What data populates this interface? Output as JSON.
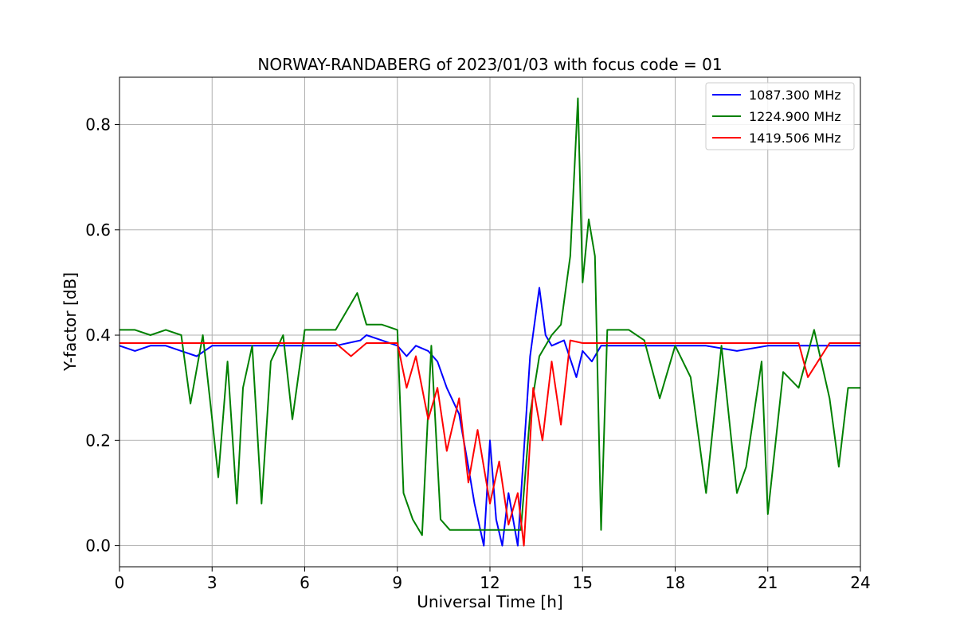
{
  "chart_data": {
    "type": "line",
    "title": "NORWAY-RANDABERG of 2023/01/03 with focus code = 01",
    "xlabel": "Universal Time [h]",
    "ylabel": "Y-factor [dB]",
    "xlim": [
      0,
      24
    ],
    "ylim": [
      -0.04,
      0.89
    ],
    "xticks": [
      0,
      3,
      6,
      9,
      12,
      15,
      18,
      21,
      24
    ],
    "xtick_labels": [
      "0",
      "3",
      "6",
      "9",
      "12",
      "15",
      "18",
      "21",
      "24"
    ],
    "yticks": [
      0.0,
      0.2,
      0.4,
      0.6,
      0.8
    ],
    "ytick_labels": [
      "0.0",
      "0.2",
      "0.4",
      "0.6",
      "0.8"
    ],
    "grid": true,
    "legend_position": "top-right",
    "series": [
      {
        "name": "1087.300 MHz",
        "color": "#0000ff",
        "points": [
          [
            0.0,
            0.38
          ],
          [
            0.5,
            0.37
          ],
          [
            1.0,
            0.38
          ],
          [
            1.5,
            0.38
          ],
          [
            2.0,
            0.37
          ],
          [
            2.5,
            0.36
          ],
          [
            3.0,
            0.38
          ],
          [
            3.5,
            0.38
          ],
          [
            4.0,
            0.38
          ],
          [
            5.0,
            0.38
          ],
          [
            6.0,
            0.38
          ],
          [
            7.0,
            0.38
          ],
          [
            7.8,
            0.39
          ],
          [
            8.0,
            0.4
          ],
          [
            8.5,
            0.39
          ],
          [
            9.0,
            0.38
          ],
          [
            9.3,
            0.36
          ],
          [
            9.6,
            0.38
          ],
          [
            10.0,
            0.37
          ],
          [
            10.3,
            0.35
          ],
          [
            10.6,
            0.3
          ],
          [
            11.0,
            0.25
          ],
          [
            11.3,
            0.15
          ],
          [
            11.5,
            0.08
          ],
          [
            11.8,
            0.0
          ],
          [
            12.0,
            0.2
          ],
          [
            12.2,
            0.05
          ],
          [
            12.4,
            0.0
          ],
          [
            12.6,
            0.1
          ],
          [
            12.9,
            0.0
          ],
          [
            13.1,
            0.18
          ],
          [
            13.3,
            0.36
          ],
          [
            13.6,
            0.49
          ],
          [
            13.8,
            0.4
          ],
          [
            14.0,
            0.38
          ],
          [
            14.4,
            0.39
          ],
          [
            14.8,
            0.32
          ],
          [
            15.0,
            0.37
          ],
          [
            15.3,
            0.35
          ],
          [
            15.6,
            0.38
          ],
          [
            16.0,
            0.38
          ],
          [
            17.0,
            0.38
          ],
          [
            18.0,
            0.38
          ],
          [
            19.0,
            0.38
          ],
          [
            20.0,
            0.37
          ],
          [
            21.0,
            0.38
          ],
          [
            22.0,
            0.38
          ],
          [
            23.0,
            0.38
          ],
          [
            24.0,
            0.38
          ]
        ]
      },
      {
        "name": "1224.900 MHz",
        "color": "#008000",
        "points": [
          [
            0.0,
            0.41
          ],
          [
            0.5,
            0.41
          ],
          [
            1.0,
            0.4
          ],
          [
            1.5,
            0.41
          ],
          [
            2.0,
            0.4
          ],
          [
            2.3,
            0.27
          ],
          [
            2.7,
            0.4
          ],
          [
            3.0,
            0.24
          ],
          [
            3.2,
            0.13
          ],
          [
            3.5,
            0.35
          ],
          [
            3.8,
            0.08
          ],
          [
            4.0,
            0.3
          ],
          [
            4.3,
            0.38
          ],
          [
            4.6,
            0.08
          ],
          [
            4.9,
            0.35
          ],
          [
            5.3,
            0.4
          ],
          [
            5.6,
            0.24
          ],
          [
            6.0,
            0.41
          ],
          [
            7.0,
            0.41
          ],
          [
            7.5,
            0.46
          ],
          [
            7.7,
            0.48
          ],
          [
            8.0,
            0.42
          ],
          [
            8.5,
            0.42
          ],
          [
            9.0,
            0.41
          ],
          [
            9.2,
            0.1
          ],
          [
            9.5,
            0.05
          ],
          [
            9.8,
            0.02
          ],
          [
            10.1,
            0.38
          ],
          [
            10.4,
            0.05
          ],
          [
            10.7,
            0.03
          ],
          [
            11.0,
            0.03
          ],
          [
            11.5,
            0.03
          ],
          [
            12.0,
            0.03
          ],
          [
            12.5,
            0.03
          ],
          [
            13.0,
            0.03
          ],
          [
            13.3,
            0.25
          ],
          [
            13.6,
            0.36
          ],
          [
            14.0,
            0.4
          ],
          [
            14.3,
            0.42
          ],
          [
            14.6,
            0.55
          ],
          [
            14.85,
            0.85
          ],
          [
            15.0,
            0.5
          ],
          [
            15.2,
            0.62
          ],
          [
            15.4,
            0.55
          ],
          [
            15.6,
            0.03
          ],
          [
            15.8,
            0.41
          ],
          [
            16.5,
            0.41
          ],
          [
            17.0,
            0.39
          ],
          [
            17.5,
            0.28
          ],
          [
            18.0,
            0.38
          ],
          [
            18.5,
            0.32
          ],
          [
            19.0,
            0.1
          ],
          [
            19.5,
            0.38
          ],
          [
            20.0,
            0.1
          ],
          [
            20.3,
            0.15
          ],
          [
            20.8,
            0.35
          ],
          [
            21.0,
            0.06
          ],
          [
            21.5,
            0.33
          ],
          [
            22.0,
            0.3
          ],
          [
            22.5,
            0.41
          ],
          [
            23.0,
            0.28
          ],
          [
            23.3,
            0.15
          ],
          [
            23.6,
            0.3
          ],
          [
            24.0,
            0.3
          ]
        ]
      },
      {
        "name": "1419.506 MHz",
        "color": "#ff0000",
        "points": [
          [
            0.0,
            0.385
          ],
          [
            1.0,
            0.385
          ],
          [
            2.0,
            0.385
          ],
          [
            3.0,
            0.385
          ],
          [
            4.0,
            0.385
          ],
          [
            5.0,
            0.385
          ],
          [
            6.0,
            0.385
          ],
          [
            7.0,
            0.385
          ],
          [
            7.5,
            0.36
          ],
          [
            8.0,
            0.385
          ],
          [
            9.0,
            0.385
          ],
          [
            9.3,
            0.3
          ],
          [
            9.6,
            0.36
          ],
          [
            10.0,
            0.24
          ],
          [
            10.3,
            0.3
          ],
          [
            10.6,
            0.18
          ],
          [
            11.0,
            0.28
          ],
          [
            11.3,
            0.12
          ],
          [
            11.6,
            0.22
          ],
          [
            12.0,
            0.08
          ],
          [
            12.3,
            0.16
          ],
          [
            12.6,
            0.04
          ],
          [
            12.9,
            0.1
          ],
          [
            13.1,
            0.0
          ],
          [
            13.4,
            0.3
          ],
          [
            13.7,
            0.2
          ],
          [
            14.0,
            0.35
          ],
          [
            14.3,
            0.23
          ],
          [
            14.6,
            0.39
          ],
          [
            15.0,
            0.385
          ],
          [
            15.5,
            0.385
          ],
          [
            16.0,
            0.385
          ],
          [
            17.0,
            0.385
          ],
          [
            18.0,
            0.385
          ],
          [
            19.0,
            0.385
          ],
          [
            20.0,
            0.385
          ],
          [
            21.0,
            0.385
          ],
          [
            22.0,
            0.385
          ],
          [
            22.3,
            0.32
          ],
          [
            23.0,
            0.385
          ],
          [
            24.0,
            0.385
          ]
        ]
      }
    ]
  }
}
